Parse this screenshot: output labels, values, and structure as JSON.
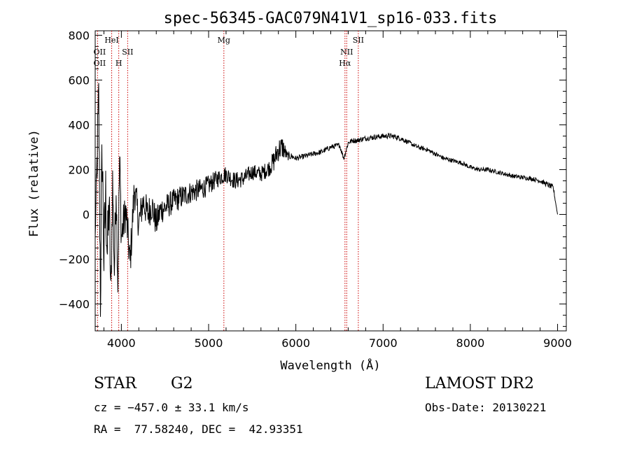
{
  "chart_data": {
    "type": "line",
    "title": "spec-56345-GAC079N41V1_sp16-033.fits",
    "xlabel": "Wavelength (Å)",
    "ylabel": "Flux (relative)",
    "xlim": [
      3700,
      9100
    ],
    "ylim": [
      -520,
      820
    ],
    "x_ticks": [
      4000,
      5000,
      6000,
      7000,
      8000,
      9000
    ],
    "y_ticks": [
      -400,
      -200,
      0,
      200,
      400,
      600,
      800
    ],
    "x_tick_labels": [
      "4000",
      "5000",
      "6000",
      "7000",
      "8000",
      "9000"
    ],
    "y_tick_labels": [
      "−400",
      "−200",
      "0",
      "200",
      "400",
      "600",
      "800"
    ],
    "grid": false,
    "series": [
      {
        "color": "#000000",
        "x": [
          3700,
          3720,
          3740,
          3760,
          3780,
          3800,
          3820,
          3840,
          3860,
          3880,
          3900,
          3920,
          3940,
          3960,
          3980,
          4000,
          4050,
          4100,
          4150,
          4200,
          4250,
          4300,
          4350,
          4400,
          4450,
          4500,
          4600,
          4700,
          4800,
          4900,
          5000,
          5100,
          5200,
          5300,
          5400,
          5500,
          5600,
          5700,
          5750,
          5800,
          5850,
          5900,
          5950,
          6000,
          6100,
          6200,
          6300,
          6400,
          6500,
          6550,
          6600,
          6650,
          6700,
          6800,
          6900,
          7000,
          7100,
          7200,
          7300,
          7400,
          7500,
          7600,
          7700,
          7800,
          7900,
          8000,
          8100,
          8200,
          8300,
          8400,
          8500,
          8600,
          8700,
          8800,
          8900,
          8950,
          9000
        ],
        "y": [
          -100,
          200,
          520,
          -340,
          300,
          -200,
          80,
          -180,
          60,
          -380,
          150,
          -250,
          140,
          -300,
          250,
          -100,
          20,
          -220,
          120,
          -40,
          60,
          0,
          40,
          -40,
          20,
          30,
          60,
          80,
          100,
          110,
          130,
          160,
          180,
          150,
          160,
          190,
          180,
          210,
          240,
          290,
          300,
          260,
          260,
          250,
          260,
          270,
          280,
          300,
          310,
          250,
          320,
          330,
          330,
          340,
          345,
          350,
          350,
          340,
          320,
          300,
          290,
          270,
          250,
          240,
          230,
          210,
          200,
          200,
          190,
          180,
          170,
          165,
          160,
          150,
          130,
          120,
          0
        ],
        "noise_amplitude": [
          0,
          160,
          140,
          220,
          200,
          200,
          180,
          160,
          150,
          120,
          120,
          120,
          110,
          110,
          110,
          100,
          90,
          90,
          85,
          80,
          75,
          75,
          70,
          70,
          65,
          60,
          55,
          55,
          50,
          50,
          45,
          40,
          38,
          40,
          38,
          36,
          36,
          38,
          50,
          55,
          55,
          20,
          15,
          12,
          12,
          12,
          12,
          12,
          12,
          12,
          12,
          12,
          12,
          12,
          12,
          12,
          12,
          12,
          10,
          10,
          10,
          10,
          10,
          10,
          10,
          10,
          10,
          10,
          10,
          10,
          10,
          10,
          10,
          10,
          12,
          12,
          0
        ]
      }
    ],
    "line_markers": [
      {
        "wavelength": 3727,
        "labels": [
          "OII",
          "OII"
        ],
        "color": "#cc0000"
      },
      {
        "wavelength": 3889,
        "labels": [
          "HeI"
        ],
        "color": "#cc0000"
      },
      {
        "wavelength": 3970,
        "labels": [
          "H"
        ],
        "color": "#cc0000"
      },
      {
        "wavelength": 4072,
        "labels": [
          "SII"
        ],
        "color": "#cc0000"
      },
      {
        "wavelength": 5175,
        "labels": [
          "Mg"
        ],
        "color": "#cc0000"
      },
      {
        "wavelength": 6583,
        "labels": [
          "NII"
        ],
        "color": "#cc0000"
      },
      {
        "wavelength": 6563,
        "labels": [
          "Hα"
        ],
        "color": "#cc0000"
      },
      {
        "wavelength": 6716,
        "labels": [
          "SII"
        ],
        "color": "#cc0000"
      }
    ]
  },
  "footer": {
    "obj_class": "STAR",
    "subclass": "G2",
    "survey": "LAMOST DR2",
    "cz_line": "cz = −457.0 ± 33.1 km/s",
    "obs_date": "Obs-Date: 20130221",
    "radec": "RA =  77.58240, DEC =  42.93351"
  }
}
